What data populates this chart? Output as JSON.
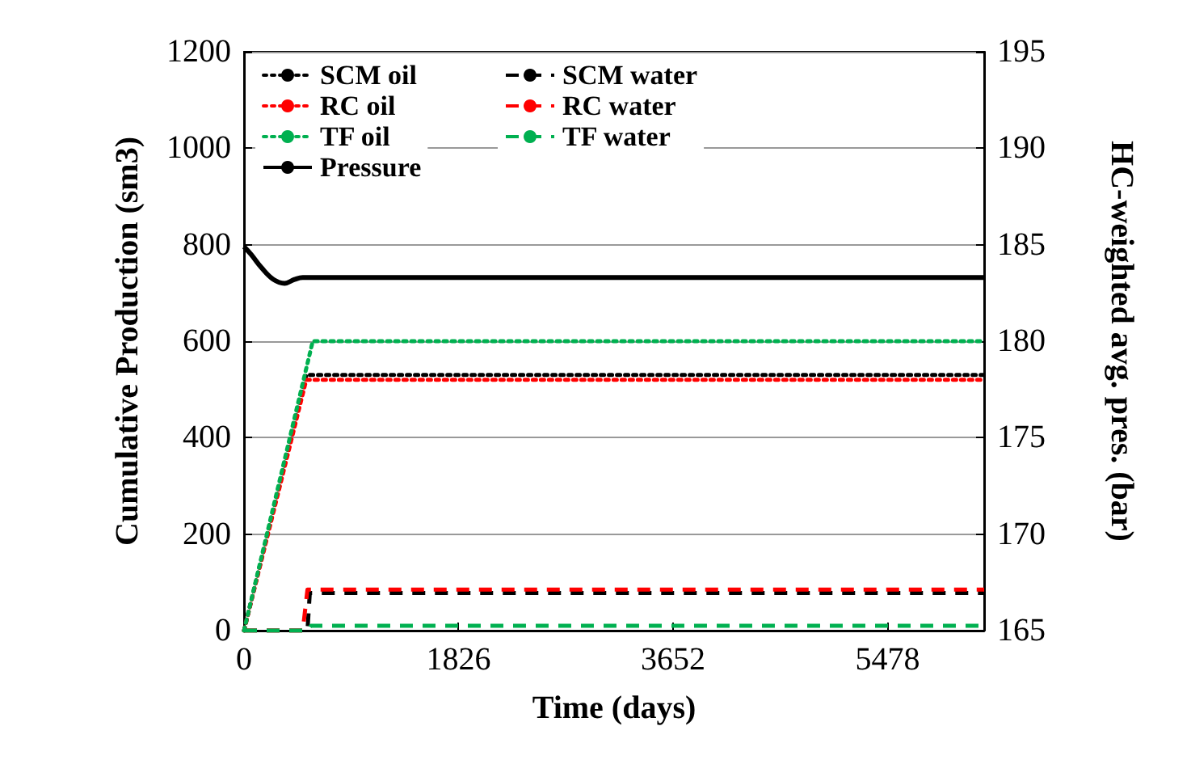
{
  "chart_data": {
    "type": "line",
    "xlabel": "Time (days)",
    "ylabel": "Cumulative Production (sm3)",
    "y2label": "HC-weighted avg. pres. (bar)",
    "xlim": [
      0,
      6300
    ],
    "xticks": [
      0,
      1826,
      3652,
      5478
    ],
    "ylim": [
      0,
      1200
    ],
    "yticks": [
      0,
      200,
      400,
      600,
      800,
      1000,
      1200
    ],
    "y2lim": [
      165,
      195
    ],
    "y2ticks": [
      165,
      170,
      175,
      180,
      185,
      190,
      195
    ],
    "grid": "y",
    "legend": "top left",
    "series": [
      {
        "name": "SCM oil",
        "color": "#000000",
        "line_style": "dotted",
        "x": [
          0,
          530,
          6300
        ],
        "values": [
          0,
          530,
          530
        ]
      },
      {
        "name": "SCM water",
        "color": "#000000",
        "line_style": "dashed",
        "x": [
          0,
          540,
          560,
          6300
        ],
        "values": [
          0,
          0,
          78,
          78
        ]
      },
      {
        "name": "RC oil",
        "color": "#ff0000",
        "line_style": "dotted",
        "x": [
          0,
          530,
          6300
        ],
        "values": [
          0,
          520,
          520
        ]
      },
      {
        "name": "RC water",
        "color": "#ff0000",
        "line_style": "dashed",
        "x": [
          0,
          500,
          540,
          6300
        ],
        "values": [
          0,
          0,
          85,
          85
        ]
      },
      {
        "name": "TF oil",
        "color": "#00b050",
        "line_style": "dotted",
        "x": [
          0,
          585,
          6300
        ],
        "values": [
          0,
          600,
          600
        ]
      },
      {
        "name": "TF water",
        "color": "#00b050",
        "line_style": "dashed",
        "x": [
          0,
          540,
          570,
          6300
        ],
        "values": [
          0,
          0,
          10,
          10
        ]
      },
      {
        "name": "Pressure",
        "color": "#000000",
        "line_style": "solid",
        "axis": "y2",
        "x": [
          0,
          60,
          150,
          250,
          346,
          430,
          500,
          6300
        ],
        "values": [
          184.9,
          184.5,
          183.8,
          183.2,
          183.0,
          183.2,
          183.3,
          183.3
        ]
      }
    ]
  }
}
